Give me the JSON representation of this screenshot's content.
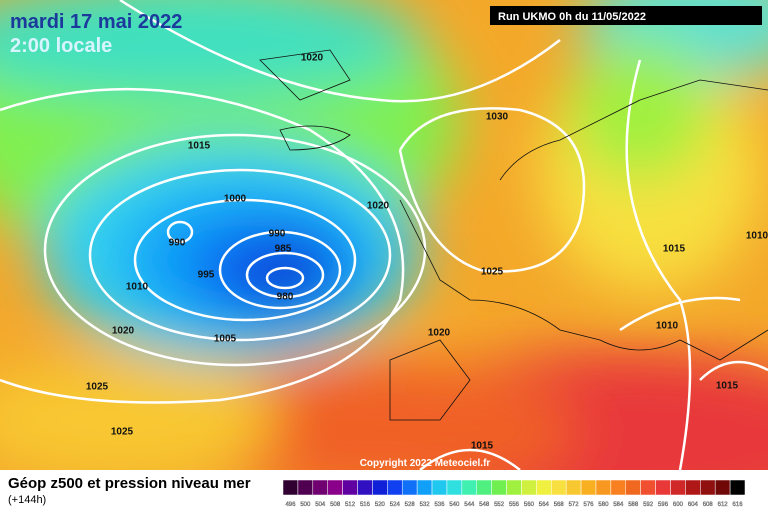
{
  "header": {
    "title": "mardi 17 mai 2022",
    "subtitle": "2:00 locale",
    "run": "Run UKMO 0h du 11/05/2022"
  },
  "isobar_labels": [
    "1020",
    "1030",
    "1015",
    "1000",
    "1020",
    "990",
    "990",
    "985",
    "995",
    "1025",
    "1010",
    "980",
    "1010",
    "1020",
    "1020",
    "1005",
    "1015",
    "1010",
    "1025",
    "1015",
    "1025",
    "1015"
  ],
  "copyright": "Copyright 2022 Meteociel.fr",
  "footer": {
    "title": "Géop z500 et pression niveau mer",
    "lead": "(+144h)"
  },
  "colorbar": {
    "labels": [
      496,
      500,
      504,
      508,
      512,
      516,
      520,
      524,
      528,
      532,
      536,
      540,
      544,
      548,
      552,
      556,
      560,
      564,
      568,
      572,
      576,
      580,
      584,
      588,
      592,
      596,
      600,
      604,
      608,
      612,
      616
    ],
    "colors": [
      "#300030",
      "#500050",
      "#700070",
      "#8a008a",
      "#6000a0",
      "#3010c0",
      "#1020d8",
      "#1040f0",
      "#1070f8",
      "#10a0f8",
      "#20c8f0",
      "#30e0e0",
      "#40f0b0",
      "#50f080",
      "#70f050",
      "#a0f040",
      "#d0f040",
      "#f0f040",
      "#f8e040",
      "#f8c830",
      "#f8b020",
      "#f89820",
      "#f88020",
      "#f06820",
      "#f05030",
      "#e83838",
      "#d02828",
      "#b01818",
      "#901010",
      "#700808",
      "#000000"
    ]
  }
}
